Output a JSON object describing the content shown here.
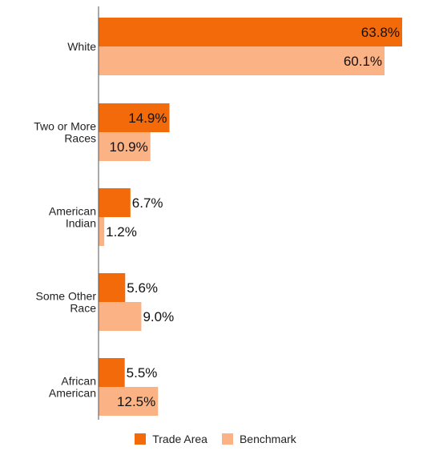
{
  "chart_data": {
    "type": "bar",
    "orientation": "horizontal",
    "categories": [
      [
        "White"
      ],
      [
        "Two or More",
        "Races"
      ],
      [
        "American",
        "Indian"
      ],
      [
        "Some Other",
        "Race"
      ],
      [
        "African",
        "American"
      ]
    ],
    "series": [
      {
        "name": "Trade Area",
        "color": "#f26a0a",
        "values": [
          63.8,
          14.9,
          6.7,
          5.6,
          5.5
        ],
        "labels": [
          "63.8%",
          "14.9%",
          "6.7%",
          "5.6%",
          "5.5%"
        ]
      },
      {
        "name": "Benchmark",
        "color": "#fbb386",
        "values": [
          60.1,
          10.9,
          1.2,
          9.0,
          12.5
        ],
        "labels": [
          "60.1%",
          "10.9%",
          "1.2%",
          "9.0%",
          "12.5%"
        ]
      }
    ],
    "xlim": [
      0,
      63.8
    ],
    "grid": false,
    "legend_position": "bottom"
  }
}
